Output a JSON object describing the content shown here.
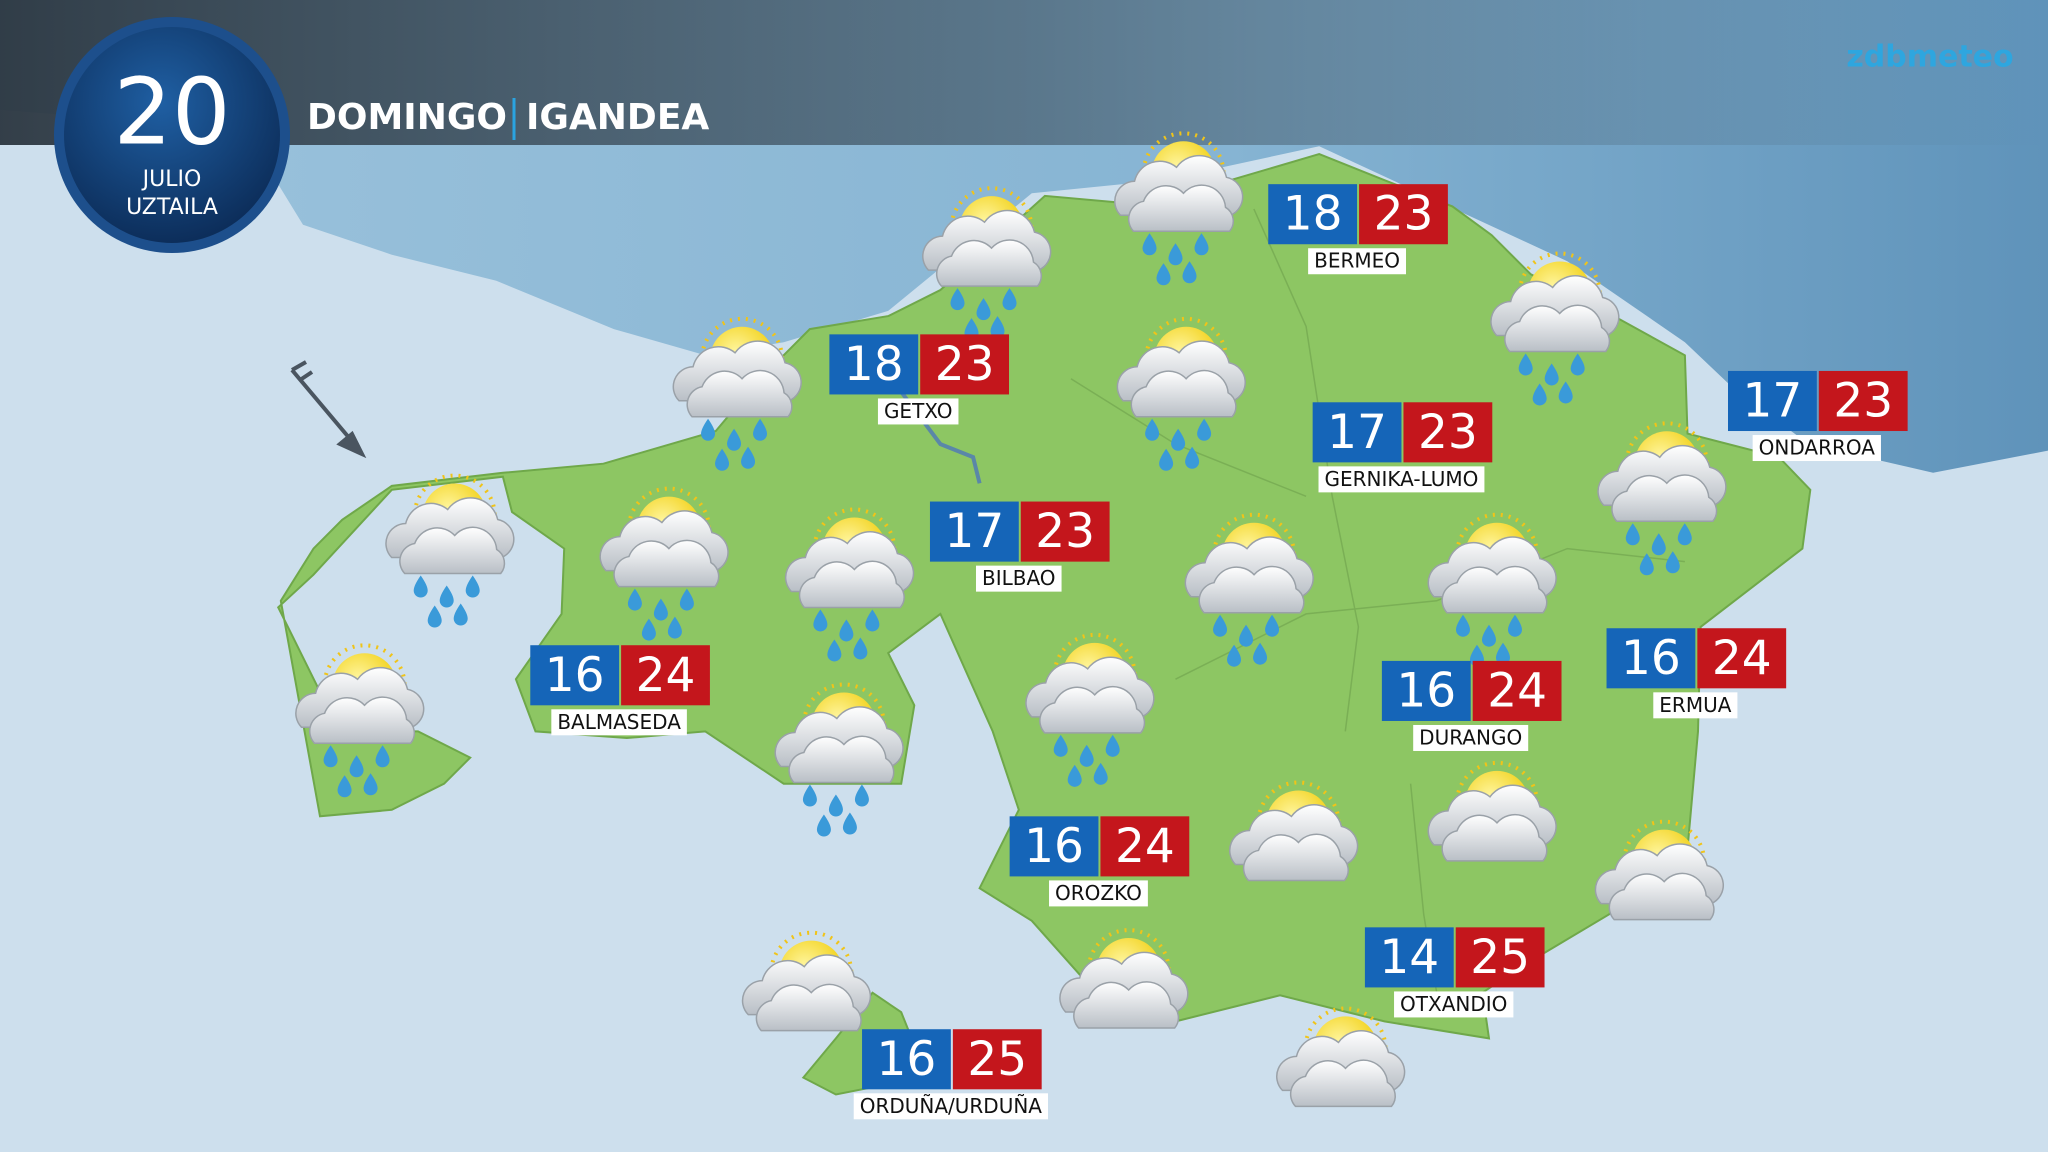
{
  "header": {
    "day": "20",
    "month_es": "JULIO",
    "month_eu": "UZTAILA",
    "weekday_es": "DOMINGO",
    "weekday_eu": "IGANDEA",
    "logo": "zdbmeteo"
  },
  "cities": [
    {
      "name": "BERMEO",
      "min": 18,
      "max": 23
    },
    {
      "name": "GETXO",
      "min": 18,
      "max": 23
    },
    {
      "name": "GERNIKA-LUMO",
      "min": 17,
      "max": 23
    },
    {
      "name": "ONDARROA",
      "min": 17,
      "max": 23
    },
    {
      "name": "BILBAO",
      "min": 17,
      "max": 23
    },
    {
      "name": "BALMASEDA",
      "min": 16,
      "max": 24
    },
    {
      "name": "ERMUA",
      "min": 16,
      "max": 24
    },
    {
      "name": "DURANGO",
      "min": 16,
      "max": 24
    },
    {
      "name": "OROZKO",
      "min": 16,
      "max": 24
    },
    {
      "name": "OTXANDIO",
      "min": 14,
      "max": 25
    },
    {
      "name": "ORDUÑA/URDUÑA",
      "min": 16,
      "max": 25
    }
  ]
}
